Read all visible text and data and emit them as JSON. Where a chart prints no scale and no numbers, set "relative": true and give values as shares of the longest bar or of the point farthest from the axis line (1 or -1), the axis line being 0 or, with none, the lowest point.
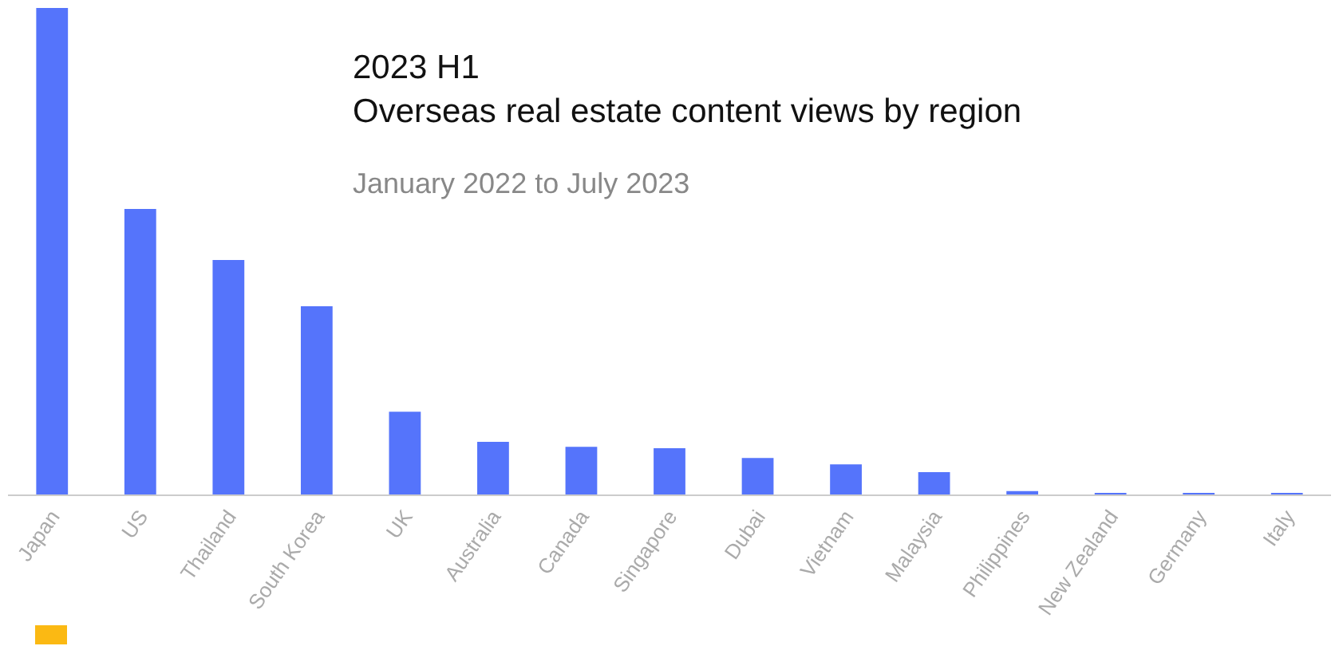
{
  "chart_data": {
    "type": "bar",
    "title": "2023 H1\nOverseas real estate content views by region",
    "subtitle": "January 2022 to July 2023",
    "relative": true,
    "categories": [
      "Japan",
      "US",
      "Thailand",
      "South Korea",
      "UK",
      "Australia",
      "Canada",
      "Singapore",
      "Dubai",
      "Vietnam",
      "Malaysia",
      "Philippines",
      "New Zealand",
      "Germany",
      "Italy"
    ],
    "values": [
      1,
      0.587,
      0.482,
      0.387,
      0.17,
      0.108,
      0.098,
      0.095,
      0.075,
      0.062,
      0.046,
      0.007,
      0.003,
      0.001,
      0.001
    ],
    "color": "#5574fb",
    "grid": false,
    "legend": false
  }
}
